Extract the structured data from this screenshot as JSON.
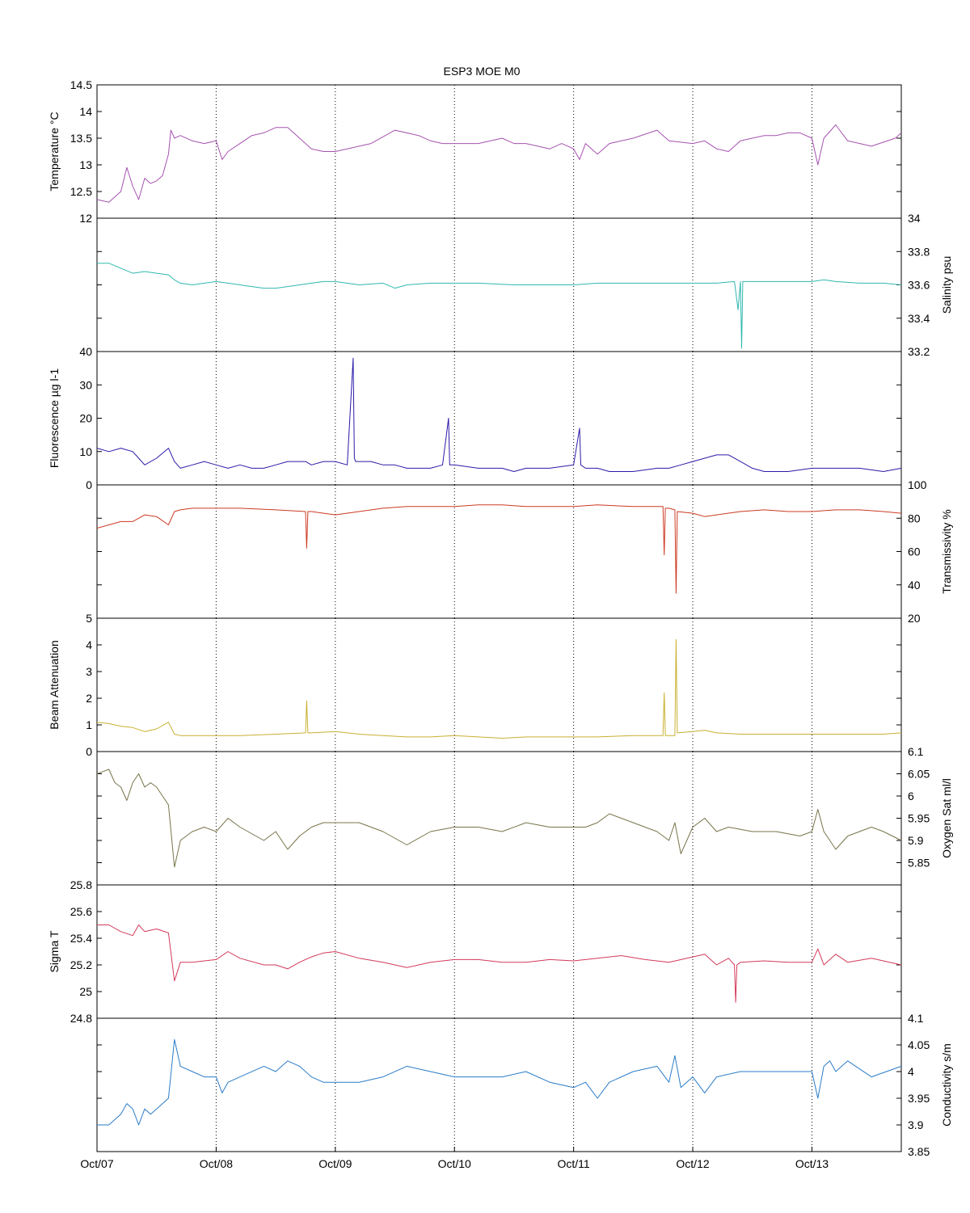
{
  "title": "ESP3 MOE   M0",
  "x_ticks": [
    "Oct/07",
    "Oct/08",
    "Oct/09",
    "Oct/10",
    "Oct/11",
    "Oct/12",
    "Oct/13"
  ],
  "chart_data": [
    {
      "type": "line",
      "ylabel": "Temperature °C",
      "ylim": [
        12,
        14.5
      ],
      "yticks": [
        "12",
        "12.5",
        "13",
        "13.5",
        "14",
        "14.5"
      ],
      "axis_side": "left",
      "color": "#a652b0",
      "grid": "vertical dotted",
      "series": [
        {
          "x": [
            0,
            0.1,
            0.2,
            0.25,
            0.3,
            0.35,
            0.4,
            0.45,
            0.5,
            0.55,
            0.6,
            0.62,
            0.65,
            0.7,
            0.8,
            0.9,
            1.0,
            1.05,
            1.1,
            1.2,
            1.3,
            1.4,
            1.5,
            1.6,
            1.7,
            1.8,
            1.9,
            2.0,
            2.1,
            2.2,
            2.3,
            2.5,
            2.7,
            2.8,
            2.9,
            3.0,
            3.2,
            3.4,
            3.5,
            3.6,
            3.7,
            3.8,
            3.9,
            4.0,
            4.05,
            4.1,
            4.2,
            4.3,
            4.5,
            4.7,
            4.8,
            5.0,
            5.1,
            5.2,
            5.3,
            5.4,
            5.5,
            5.6,
            5.7,
            5.8,
            5.9,
            6.0,
            6.05,
            6.1,
            6.2,
            6.3,
            6.5,
            6.7,
            6.75
          ],
          "values": [
            12.35,
            12.3,
            12.5,
            12.95,
            12.6,
            12.35,
            12.75,
            12.65,
            12.7,
            12.8,
            13.2,
            13.65,
            13.5,
            13.55,
            13.45,
            13.4,
            13.45,
            13.1,
            13.25,
            13.4,
            13.55,
            13.6,
            13.7,
            13.7,
            13.5,
            13.3,
            13.25,
            13.25,
            13.3,
            13.35,
            13.4,
            13.65,
            13.55,
            13.45,
            13.4,
            13.4,
            13.4,
            13.5,
            13.4,
            13.4,
            13.35,
            13.3,
            13.4,
            13.3,
            13.1,
            13.4,
            13.2,
            13.4,
            13.5,
            13.65,
            13.45,
            13.4,
            13.45,
            13.3,
            13.25,
            13.45,
            13.5,
            13.55,
            13.55,
            13.6,
            13.6,
            13.5,
            13.0,
            13.5,
            13.75,
            13.45,
            13.35,
            13.5,
            13.6
          ]
        }
      ]
    },
    {
      "type": "line",
      "ylabel": "Salinity psu",
      "ylim": [
        33.2,
        34
      ],
      "yticks": [
        "33.2",
        "33.4",
        "33.6",
        "33.8",
        "34"
      ],
      "axis_side": "right",
      "color": "#30b8b0",
      "grid": "vertical dotted",
      "series": [
        {
          "x": [
            0,
            0.1,
            0.2,
            0.3,
            0.4,
            0.5,
            0.6,
            0.65,
            0.7,
            0.8,
            0.9,
            1.0,
            1.1,
            1.2,
            1.3,
            1.4,
            1.5,
            1.6,
            1.7,
            1.8,
            1.9,
            2.0,
            2.2,
            2.4,
            2.5,
            2.6,
            2.8,
            3.0,
            3.2,
            3.5,
            3.7,
            4.0,
            4.2,
            4.5,
            4.8,
            5.0,
            5.2,
            5.35,
            5.38,
            5.4,
            5.41,
            5.42,
            5.5,
            5.7,
            5.9,
            6.0,
            6.1,
            6.2,
            6.4,
            6.6,
            6.75
          ],
          "values": [
            33.73,
            33.73,
            33.7,
            33.67,
            33.68,
            33.67,
            33.66,
            33.63,
            33.61,
            33.6,
            33.61,
            33.62,
            33.61,
            33.6,
            33.59,
            33.58,
            33.58,
            33.59,
            33.6,
            33.61,
            33.62,
            33.62,
            33.6,
            33.61,
            33.58,
            33.6,
            33.61,
            33.61,
            33.61,
            33.6,
            33.6,
            33.6,
            33.61,
            33.61,
            33.61,
            33.61,
            33.61,
            33.62,
            33.45,
            33.62,
            33.22,
            33.62,
            33.62,
            33.62,
            33.62,
            33.62,
            33.63,
            33.62,
            33.61,
            33.61,
            33.6
          ]
        }
      ]
    },
    {
      "type": "line",
      "ylabel": "Fluorescence µg l-1",
      "ylim": [
        0,
        40
      ],
      "yticks": [
        "0",
        "10",
        "20",
        "30",
        "40"
      ],
      "axis_side": "left",
      "color": "#2a1aa8",
      "grid": "vertical dotted",
      "series": [
        {
          "x": [
            0,
            0.1,
            0.2,
            0.3,
            0.35,
            0.4,
            0.5,
            0.6,
            0.65,
            0.7,
            0.8,
            0.9,
            1.0,
            1.1,
            1.2,
            1.3,
            1.4,
            1.5,
            1.6,
            1.7,
            1.75,
            1.8,
            1.9,
            2.0,
            2.1,
            2.15,
            2.16,
            2.17,
            2.2,
            2.3,
            2.4,
            2.5,
            2.6,
            2.7,
            2.8,
            2.9,
            2.95,
            2.96,
            2.97,
            3.0,
            3.2,
            3.4,
            3.5,
            3.6,
            3.8,
            4.0,
            4.05,
            4.06,
            4.1,
            4.2,
            4.3,
            4.5,
            4.7,
            4.8,
            4.9,
            5.0,
            5.1,
            5.2,
            5.3,
            5.4,
            5.5,
            5.6,
            5.8,
            6.0,
            6.2,
            6.4,
            6.6,
            6.75
          ],
          "values": [
            11,
            10,
            11,
            10,
            8,
            6,
            8,
            11,
            7,
            5,
            6,
            7,
            6,
            5,
            6,
            5,
            5,
            6,
            7,
            7,
            7,
            6,
            7,
            7,
            6,
            38,
            8,
            7,
            7,
            7,
            6,
            6,
            5,
            5,
            5,
            6,
            20,
            6,
            6,
            6,
            5,
            5,
            4,
            5,
            5,
            6,
            17,
            6,
            5,
            5,
            4,
            4,
            5,
            5,
            6,
            7,
            8,
            9,
            9,
            7,
            5,
            4,
            4,
            5,
            5,
            5,
            4,
            5
          ]
        }
      ]
    },
    {
      "type": "line",
      "ylabel": "Transmissivity %",
      "ylim": [
        20,
        100
      ],
      "yticks": [
        "20",
        "40",
        "60",
        "80",
        "100"
      ],
      "axis_side": "right",
      "color": "#cc3a22",
      "grid": "vertical dotted",
      "series": [
        {
          "x": [
            0,
            0.1,
            0.2,
            0.3,
            0.4,
            0.5,
            0.6,
            0.65,
            0.7,
            0.8,
            1.0,
            1.2,
            1.5,
            1.75,
            1.76,
            1.77,
            1.8,
            2.0,
            2.2,
            2.4,
            2.6,
            2.8,
            3.0,
            3.2,
            3.4,
            3.6,
            3.8,
            4.0,
            4.2,
            4.5,
            4.75,
            4.76,
            4.77,
            4.8,
            4.85,
            4.86,
            4.87,
            5.0,
            5.1,
            5.2,
            5.4,
            5.6,
            5.8,
            6.0,
            6.2,
            6.4,
            6.6,
            6.75
          ],
          "values": [
            74,
            76,
            78,
            78,
            82,
            81,
            76,
            84,
            85,
            86,
            86,
            86,
            85,
            84,
            62,
            84,
            84,
            82,
            84,
            86,
            87,
            87,
            87,
            88,
            88,
            87,
            87,
            87,
            88,
            87,
            87,
            58,
            86,
            86,
            85,
            35,
            84,
            83,
            81,
            82,
            84,
            85,
            84,
            84,
            85,
            85,
            84,
            83
          ]
        }
      ]
    },
    {
      "type": "line",
      "ylabel": "Beam Attenuation",
      "ylim": [
        0,
        5
      ],
      "yticks": [
        "0",
        "1",
        "2",
        "3",
        "4",
        "5"
      ],
      "axis_side": "left",
      "color": "#c8b030",
      "grid": "vertical dotted",
      "series": [
        {
          "x": [
            0,
            0.1,
            0.2,
            0.3,
            0.4,
            0.5,
            0.6,
            0.65,
            0.7,
            0.8,
            1.0,
            1.2,
            1.5,
            1.75,
            1.76,
            1.77,
            1.8,
            2.0,
            2.2,
            2.4,
            2.6,
            2.8,
            3.0,
            3.2,
            3.4,
            3.6,
            3.8,
            4.0,
            4.2,
            4.5,
            4.75,
            4.76,
            4.77,
            4.8,
            4.85,
            4.86,
            4.87,
            5.0,
            5.1,
            5.2,
            5.4,
            5.6,
            5.8,
            6.0,
            6.2,
            6.4,
            6.6,
            6.75
          ],
          "values": [
            1.1,
            1.05,
            0.95,
            0.9,
            0.75,
            0.85,
            1.1,
            0.65,
            0.6,
            0.6,
            0.6,
            0.6,
            0.65,
            0.7,
            1.9,
            0.7,
            0.7,
            0.75,
            0.65,
            0.6,
            0.55,
            0.55,
            0.6,
            0.55,
            0.5,
            0.55,
            0.55,
            0.55,
            0.55,
            0.6,
            0.6,
            2.2,
            0.6,
            0.6,
            0.6,
            4.2,
            0.7,
            0.75,
            0.8,
            0.7,
            0.65,
            0.65,
            0.65,
            0.65,
            0.65,
            0.65,
            0.65,
            0.7
          ]
        }
      ]
    },
    {
      "type": "line",
      "ylabel": "Oxygen Sat ml/l",
      "ylim": [
        5.8,
        6.1
      ],
      "yticks": [
        "5.85",
        "5.9",
        "5.95",
        "6",
        "6.05",
        "6.1"
      ],
      "axis_side": "right",
      "color": "#78744a",
      "grid": "vertical dotted",
      "series": [
        {
          "x": [
            0,
            0.1,
            0.15,
            0.2,
            0.25,
            0.3,
            0.35,
            0.4,
            0.45,
            0.5,
            0.6,
            0.65,
            0.7,
            0.8,
            0.9,
            1.0,
            1.1,
            1.2,
            1.4,
            1.5,
            1.6,
            1.7,
            1.8,
            1.9,
            2.0,
            2.2,
            2.4,
            2.6,
            2.8,
            3.0,
            3.2,
            3.4,
            3.6,
            3.8,
            4.0,
            4.1,
            4.2,
            4.3,
            4.4,
            4.5,
            4.7,
            4.8,
            4.85,
            4.9,
            5.0,
            5.1,
            5.2,
            5.3,
            5.5,
            5.7,
            5.9,
            6.0,
            6.05,
            6.1,
            6.15,
            6.2,
            6.3,
            6.5,
            6.6,
            6.75
          ],
          "values": [
            6.05,
            6.06,
            6.03,
            6.02,
            5.99,
            6.03,
            6.05,
            6.02,
            6.03,
            6.02,
            5.98,
            5.84,
            5.9,
            5.92,
            5.93,
            5.92,
            5.95,
            5.93,
            5.9,
            5.92,
            5.88,
            5.91,
            5.93,
            5.94,
            5.94,
            5.94,
            5.92,
            5.89,
            5.92,
            5.93,
            5.93,
            5.92,
            5.94,
            5.93,
            5.93,
            5.93,
            5.94,
            5.96,
            5.95,
            5.94,
            5.92,
            5.9,
            5.94,
            5.87,
            5.93,
            5.95,
            5.92,
            5.93,
            5.92,
            5.92,
            5.91,
            5.92,
            5.97,
            5.92,
            5.9,
            5.88,
            5.91,
            5.93,
            5.92,
            5.9
          ]
        }
      ]
    },
    {
      "type": "line",
      "ylabel": "Sigma T",
      "ylim": [
        24.8,
        25.8
      ],
      "yticks": [
        "24.8",
        "25",
        "25.2",
        "25.4",
        "25.6",
        "25.8"
      ],
      "axis_side": "left",
      "color": "#d23a5a",
      "grid": "vertical dotted",
      "series": [
        {
          "x": [
            0,
            0.1,
            0.2,
            0.3,
            0.35,
            0.4,
            0.5,
            0.6,
            0.65,
            0.7,
            0.8,
            0.9,
            1.0,
            1.1,
            1.2,
            1.4,
            1.5,
            1.6,
            1.7,
            1.8,
            1.9,
            2.0,
            2.2,
            2.4,
            2.6,
            2.8,
            3.0,
            3.2,
            3.4,
            3.6,
            3.8,
            4.0,
            4.2,
            4.4,
            4.6,
            4.8,
            5.0,
            5.1,
            5.2,
            5.3,
            5.35,
            5.36,
            5.37,
            5.4,
            5.6,
            5.8,
            6.0,
            6.05,
            6.1,
            6.2,
            6.3,
            6.5,
            6.75
          ],
          "values": [
            25.5,
            25.5,
            25.45,
            25.42,
            25.5,
            25.45,
            25.47,
            25.44,
            25.08,
            25.22,
            25.22,
            25.23,
            25.24,
            25.3,
            25.25,
            25.2,
            25.2,
            25.17,
            25.22,
            25.26,
            25.29,
            25.3,
            25.25,
            25.22,
            25.18,
            25.22,
            25.24,
            25.24,
            25.22,
            25.22,
            25.24,
            25.23,
            25.25,
            25.27,
            25.24,
            25.22,
            25.26,
            25.28,
            25.2,
            25.25,
            25.2,
            24.92,
            25.2,
            25.22,
            25.23,
            25.22,
            25.22,
            25.32,
            25.2,
            25.28,
            25.22,
            25.25,
            25.2
          ]
        }
      ]
    },
    {
      "type": "line",
      "ylabel": "Conductivity s/m",
      "ylim": [
        3.85,
        4.1
      ],
      "yticks": [
        "3.85",
        "3.9",
        "3.95",
        "4",
        "4.05",
        "4.1"
      ],
      "axis_side": "right",
      "color": "#2a7cc8",
      "grid": "vertical dotted",
      "series": [
        {
          "x": [
            0,
            0.1,
            0.2,
            0.25,
            0.3,
            0.35,
            0.4,
            0.45,
            0.5,
            0.6,
            0.65,
            0.7,
            0.8,
            0.9,
            1.0,
            1.05,
            1.1,
            1.2,
            1.4,
            1.5,
            1.6,
            1.7,
            1.8,
            1.9,
            2.0,
            2.2,
            2.4,
            2.6,
            2.8,
            3.0,
            3.2,
            3.4,
            3.6,
            3.8,
            4.0,
            4.1,
            4.2,
            4.3,
            4.5,
            4.7,
            4.8,
            4.85,
            4.9,
            5.0,
            5.1,
            5.2,
            5.4,
            5.6,
            5.8,
            6.0,
            6.05,
            6.1,
            6.15,
            6.2,
            6.3,
            6.5,
            6.75
          ],
          "values": [
            3.9,
            3.9,
            3.92,
            3.94,
            3.93,
            3.9,
            3.93,
            3.92,
            3.93,
            3.95,
            4.06,
            4.01,
            4.0,
            3.99,
            3.99,
            3.96,
            3.98,
            3.99,
            4.01,
            4.0,
            4.02,
            4.01,
            3.99,
            3.98,
            3.98,
            3.98,
            3.99,
            4.01,
            4.0,
            3.99,
            3.99,
            3.99,
            4.0,
            3.98,
            3.97,
            3.98,
            3.95,
            3.98,
            4.0,
            4.01,
            3.98,
            4.03,
            3.97,
            3.99,
            3.96,
            3.99,
            4.0,
            4.0,
            4.0,
            4.0,
            3.95,
            4.01,
            4.02,
            4.0,
            4.02,
            3.99,
            4.01
          ]
        }
      ]
    }
  ]
}
